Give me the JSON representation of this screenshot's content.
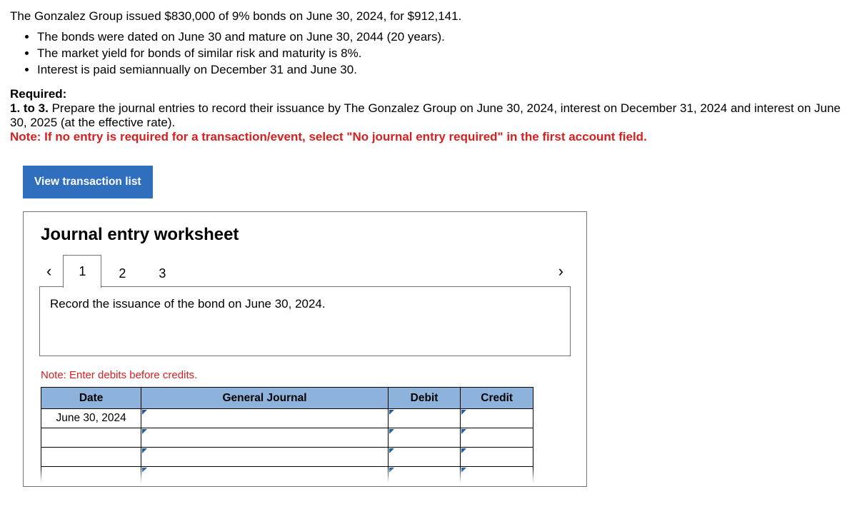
{
  "intro": "The Gonzalez Group issued $830,000 of 9% bonds on June 30, 2024, for $912,141.",
  "bullets": [
    "The bonds were dated on June 30 and mature on June 30, 2044 (20 years).",
    "The market yield for bonds of similar risk and maturity is 8%.",
    "Interest is paid semiannually on December 31 and June 30."
  ],
  "required_label": "Required:",
  "required_line_prefix": "1. to 3.",
  "required_line_rest": " Prepare the journal entries to record their issuance by The Gonzalez Group on June 30, 2024, interest on December 31, 2024 and interest on June 30, 2025 (at the effective rate).",
  "note_red": "Note: If no entry is required for a transaction/event, select \"No journal entry required\" in the first account field.",
  "view_btn": "View transaction list",
  "ws_title": "Journal entry worksheet",
  "tabs": [
    "1",
    "2",
    "3"
  ],
  "active_tab_index": 0,
  "prompt_text": "Record the issuance of the bond on June 30, 2024.",
  "debits_note": "Note: Enter debits before credits.",
  "table": {
    "headers": {
      "date": "Date",
      "gj": "General Journal",
      "debit": "Debit",
      "credit": "Credit"
    },
    "rows": [
      {
        "date": "June 30, 2024",
        "gj": "",
        "debit": "",
        "credit": ""
      },
      {
        "date": "",
        "gj": "",
        "debit": "",
        "credit": ""
      },
      {
        "date": "",
        "gj": "",
        "debit": "",
        "credit": ""
      },
      {
        "date": "",
        "gj": "",
        "debit": "",
        "credit": ""
      }
    ]
  },
  "colors": {
    "button_bg": "#2f6fbd",
    "header_bg": "#8db3dd",
    "red": "#d81f1f",
    "border": "#737373"
  }
}
